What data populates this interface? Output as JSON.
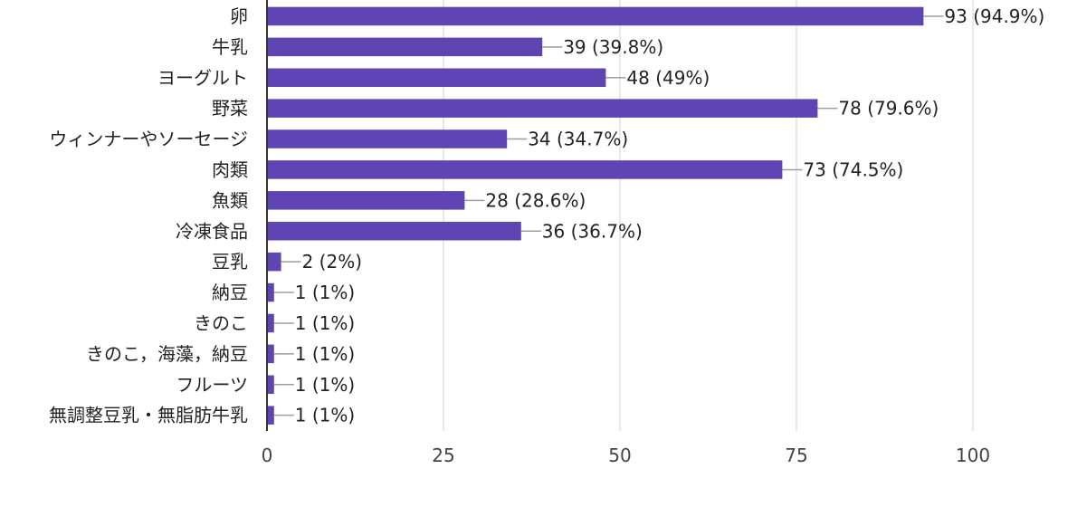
{
  "chart_data": {
    "type": "bar",
    "orientation": "horizontal",
    "categories": [
      "卵",
      "牛乳",
      "ヨーグルト",
      "野菜",
      "ウィンナーやソーセージ",
      "肉類",
      "魚類",
      "冷凍食品",
      "豆乳",
      "納豆",
      "きのこ",
      "きのこ，海藻，納豆",
      "フルーツ",
      "無調整豆乳・無脂肪牛乳"
    ],
    "values": [
      93,
      39,
      48,
      78,
      34,
      73,
      28,
      36,
      2,
      1,
      1,
      1,
      1,
      1
    ],
    "data_labels": [
      "93 (94.9%)",
      "39 (39.8%)",
      "48 (49%)",
      "78 (79.6%)",
      "34 (34.7%)",
      "73 (74.5%)",
      "28 (28.6%)",
      "36 (36.7%)",
      "2 (2%)",
      "1 (1%)",
      "1 (1%)",
      "1 (1%)",
      "1 (1%)",
      "1 (1%)"
    ],
    "xlim": [
      0,
      100
    ],
    "xticks": [
      0,
      25,
      50,
      75,
      100
    ],
    "xtick_labels": [
      "0",
      "25",
      "50",
      "75",
      "100"
    ],
    "grid": true,
    "bar_color": "#5e45b3",
    "connector_color": "#9e9e9e",
    "gridline_color": "#e0e0e0",
    "axis_color": "#333333"
  }
}
